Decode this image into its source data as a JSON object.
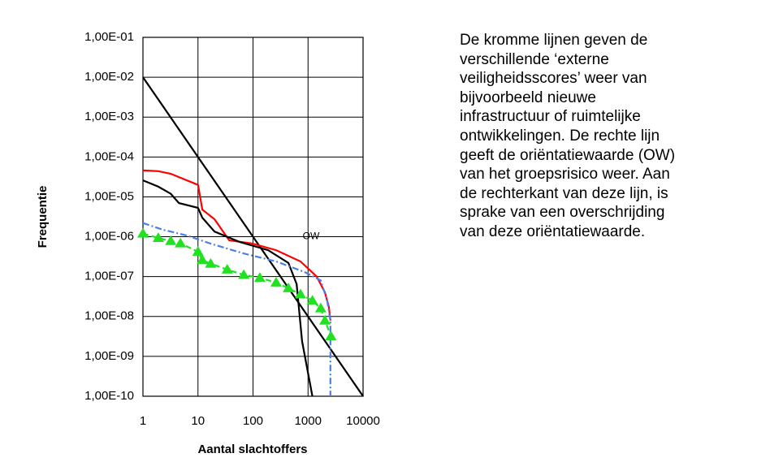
{
  "chart_data": {
    "type": "line",
    "xlabel": "Aantal slachtoffers",
    "ylabel": "Frequentie",
    "xscale": "log",
    "yscale": "log",
    "xlim": [
      1,
      10000
    ],
    "ylim": [
      1e-10,
      0.1
    ],
    "xticks": [
      1,
      10,
      100,
      1000,
      10000
    ],
    "yticks": [
      {
        "value": 0.1,
        "label": "1,00E-01"
      },
      {
        "value": 0.01,
        "label": "1,00E-02"
      },
      {
        "value": 0.001,
        "label": "1,00E-03"
      },
      {
        "value": 0.0001,
        "label": "1,00E-04"
      },
      {
        "value": 1e-05,
        "label": "1,00E-05"
      },
      {
        "value": 1e-06,
        "label": "1,00E-06"
      },
      {
        "value": 1e-07,
        "label": "1,00E-07"
      },
      {
        "value": 1e-08,
        "label": "1,00E-08"
      },
      {
        "value": 1e-09,
        "label": "1,00E-09"
      },
      {
        "value": 1e-10,
        "label": "1,00E-10"
      }
    ],
    "grid": true,
    "series": [
      {
        "color": "#000000",
        "dash": "solid",
        "markers": false,
        "x": [
          1,
          10000
        ],
        "values": [
          0.01,
          1e-10
        ]
      },
      {
        "color": "#ff0000",
        "dash": "solid",
        "markers": false,
        "x": [
          1,
          1.9,
          3.2,
          10,
          12,
          20,
          37,
          95,
          263,
          730,
          1440,
          2030,
          2400,
          2550
        ],
        "values": [
          4.6e-05,
          4.4e-05,
          3.8e-05,
          2e-05,
          4.8e-06,
          2.75e-06,
          8.1e-07,
          6.8e-07,
          4.6e-07,
          2.4e-07,
          1e-07,
          4e-08,
          1.7e-08,
          7.9e-09
        ]
      },
      {
        "color": "#000000",
        "dash": "solid",
        "markers": false,
        "x": [
          1,
          1.9,
          3.2,
          4.5,
          10,
          12,
          20,
          57,
          188,
          440,
          620,
          780,
          1200
        ],
        "values": [
          2.6e-05,
          1.8e-05,
          1.2e-05,
          7e-06,
          5.3e-06,
          3e-06,
          1.35e-06,
          7.4e-07,
          4.6e-07,
          2.2e-07,
          6.5e-08,
          2.4e-09,
          1e-10
        ]
      },
      {
        "color": "#4a7fe8",
        "dash": "dashdot",
        "markers": false,
        "x": [
          1,
          2.3,
          6.3,
          17,
          68,
          263,
          870,
          1700,
          2230,
          2550,
          2550
        ],
        "values": [
          2.2e-06,
          1.5e-06,
          1.07e-06,
          6.7e-07,
          3.8e-07,
          2.4e-07,
          1.3e-07,
          8e-08,
          2.5e-08,
          7.9e-09,
          1e-10
        ]
      },
      {
        "color": "#22e022",
        "dash": "dashed",
        "markers": true,
        "x": [
          1,
          1.9,
          3.2,
          4.8,
          10,
          12,
          17,
          34,
          68,
          133,
          263,
          440,
          730,
          1200,
          1700,
          2030,
          2600
        ],
        "values": [
          1.2e-06,
          9.3e-07,
          7.8e-07,
          6.8e-07,
          4.2e-07,
          2.6e-07,
          2.1e-07,
          1.5e-07,
          1.1e-07,
          9.3e-08,
          7.1e-08,
          5.1e-08,
          3.6e-08,
          2.5e-08,
          1.6e-08,
          7.9e-09,
          3.2e-09
        ]
      }
    ],
    "annotations": [
      {
        "text": "OW",
        "x": 800,
        "y": 1e-06
      }
    ]
  },
  "description": {
    "lines": [
      "De kromme lijnen geven de",
      "verschillende ‘externe",
      "veiligheidsscores’ weer van",
      "bijvoorbeeld nieuwe",
      "infrastructuur of ruimtelijke",
      "ontwikkelingen. De rechte lijn",
      "geeft de oriëntatiewaarde (OW)",
      "van het groepsrisico weer. Aan",
      "de rechterkant van deze lijn, is",
      "sprake van een overschrijding",
      "van deze oriëntatiewaarde."
    ]
  }
}
